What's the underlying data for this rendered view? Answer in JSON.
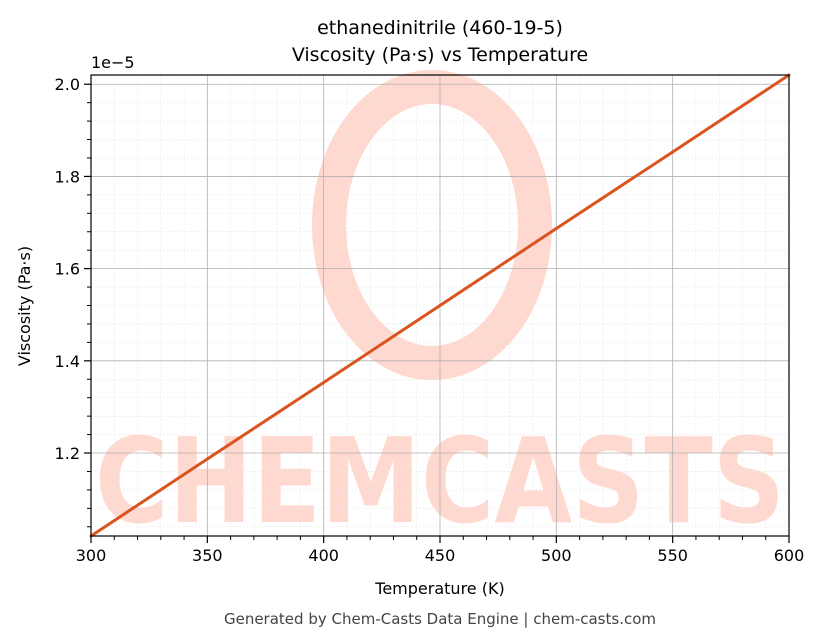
{
  "chart_data": {
    "type": "line",
    "title": "ethanedinitrile (460-19-5)",
    "subtitle": "Viscosity (Pa·s) vs Temperature",
    "xlabel": "Temperature (K)",
    "ylabel": "Viscosity (Pa·s)",
    "y_offset_label": "1e−5",
    "xlim": [
      300,
      600
    ],
    "ylim": [
      1.02,
      2.02
    ],
    "x_ticks": [
      300,
      350,
      400,
      450,
      500,
      550,
      600
    ],
    "x_tick_labels": [
      "300",
      "350",
      "400",
      "450",
      "500",
      "550",
      "600"
    ],
    "y_ticks": [
      1.2,
      1.4,
      1.6,
      1.8,
      2.0
    ],
    "y_tick_labels": [
      "1.2",
      "1.4",
      "1.6",
      "1.8",
      "2.0"
    ],
    "grid": true,
    "series": [
      {
        "x": [
          300,
          350,
          400,
          450,
          500,
          550,
          600
        ],
        "values": [
          1.02,
          1.187,
          1.353,
          1.52,
          1.687,
          1.853,
          2.02
        ],
        "color": "#d9541e"
      }
    ]
  },
  "watermark": "CHEMCASTS",
  "footer": "Generated by Chem-Casts Data Engine | chem-casts.com",
  "colors": {
    "line": "#d9541e",
    "watermark": "#ffd9d0",
    "grid": "#b0b0b0"
  }
}
